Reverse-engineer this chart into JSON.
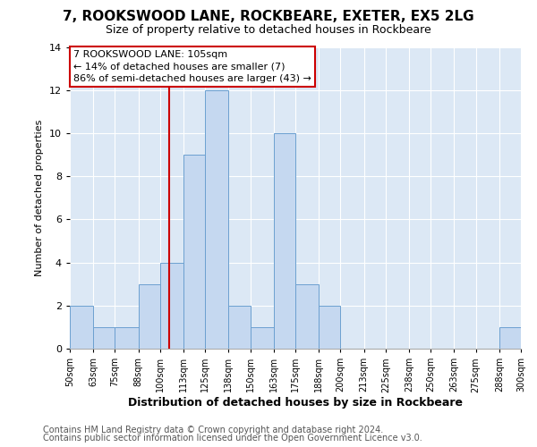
{
  "title": "7, ROOKSWOOD LANE, ROCKBEARE, EXETER, EX5 2LG",
  "subtitle": "Size of property relative to detached houses in Rockbeare",
  "xlabel": "Distribution of detached houses by size in Rockbeare",
  "ylabel": "Number of detached properties",
  "bin_edges": [
    50,
    63,
    75,
    88,
    100,
    113,
    125,
    138,
    150,
    163,
    175,
    188,
    200,
    213,
    225,
    238,
    250,
    263,
    275,
    288,
    300
  ],
  "counts": [
    2,
    1,
    1,
    3,
    4,
    9,
    12,
    2,
    1,
    10,
    3,
    2,
    0,
    0,
    0,
    0,
    0,
    0,
    0,
    1
  ],
  "bar_color": "#c5d8f0",
  "bar_edge_color": "#6ca0d0",
  "property_value": 105,
  "vline_color": "#cc0000",
  "annotation_line1": "7 ROOKSWOOD LANE: 105sqm",
  "annotation_line2": "← 14% of detached houses are smaller (7)",
  "annotation_line3": "86% of semi-detached houses are larger (43) →",
  "annotation_box_edge_color": "#cc0000",
  "ylim": [
    0,
    14
  ],
  "yticks": [
    0,
    2,
    4,
    6,
    8,
    10,
    12,
    14
  ],
  "tick_labels": [
    "50sqm",
    "63sqm",
    "75sqm",
    "88sqm",
    "100sqm",
    "113sqm",
    "125sqm",
    "138sqm",
    "150sqm",
    "163sqm",
    "175sqm",
    "188sqm",
    "200sqm",
    "213sqm",
    "225sqm",
    "238sqm",
    "250sqm",
    "263sqm",
    "275sqm",
    "288sqm",
    "300sqm"
  ],
  "footer_line1": "Contains HM Land Registry data © Crown copyright and database right 2024.",
  "footer_line2": "Contains public sector information licensed under the Open Government Licence v3.0.",
  "plot_bg_color": "#dce8f5",
  "grid_color": "#ffffff",
  "title_fontsize": 11,
  "subtitle_fontsize": 9,
  "ylabel_fontsize": 8,
  "xlabel_fontsize": 9,
  "ytick_fontsize": 8,
  "xtick_fontsize": 7,
  "footer_fontsize": 7,
  "annotation_fontsize": 8
}
